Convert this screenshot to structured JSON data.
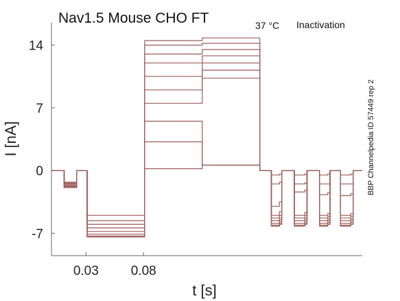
{
  "chart_data": {
    "type": "line",
    "title_main": "Nav1.5  Mouse  CHO FT",
    "title_sub_temp": "37 °C",
    "title_sub_protocol": "Inactivation",
    "side_label": "BBP Channelpedia ID 57449 rep 2",
    "xlabel": "t [s]",
    "ylabel": "I [nA]",
    "x_ticks": [
      {
        "value": 0.03,
        "label": "0.03"
      },
      {
        "value": 0.08,
        "label": "0.08"
      }
    ],
    "y_ticks": [
      {
        "value": 14,
        "label": "14"
      },
      {
        "value": 7,
        "label": "7"
      },
      {
        "value": 0,
        "label": "0"
      },
      {
        "value": -7,
        "label": "-7"
      }
    ],
    "xlim": [
      0.0,
      0.27
    ],
    "ylim": [
      -9.5,
      16.5
    ],
    "trace_color": "#9c5c5c",
    "legend": "none",
    "grid": false,
    "series": [
      {
        "values": [
          [
            0,
            0
          ],
          [
            0.01,
            0
          ],
          [
            0.011,
            -1.3
          ],
          [
            0.021,
            -1.3
          ],
          [
            0.022,
            0
          ],
          [
            0.03,
            0
          ],
          [
            0.031,
            -5.0
          ],
          [
            0.08,
            -5.0
          ],
          [
            0.081,
            14.5
          ],
          [
            0.13,
            14.5
          ],
          [
            0.131,
            14.8
          ],
          [
            0.18,
            14.8
          ],
          [
            0.181,
            0
          ],
          [
            0.19,
            0
          ],
          [
            0.191,
            -5.0
          ],
          [
            0.198,
            -4.6
          ],
          [
            0.2,
            0
          ],
          [
            0.21,
            0
          ],
          [
            0.211,
            -5.0
          ],
          [
            0.22,
            -4.7
          ],
          [
            0.222,
            0
          ],
          [
            0.232,
            0
          ],
          [
            0.233,
            -5.0
          ],
          [
            0.24,
            -4.8
          ],
          [
            0.242,
            0
          ],
          [
            0.25,
            0
          ],
          [
            0.251,
            -5.0
          ],
          [
            0.26,
            -4.8
          ],
          [
            0.262,
            0
          ],
          [
            0.27,
            0
          ]
        ]
      },
      {
        "values": [
          [
            0,
            0
          ],
          [
            0.01,
            0
          ],
          [
            0.011,
            -1.4
          ],
          [
            0.021,
            -1.4
          ],
          [
            0.022,
            0
          ],
          [
            0.03,
            0
          ],
          [
            0.031,
            -5.6
          ],
          [
            0.08,
            -5.6
          ],
          [
            0.081,
            14.0
          ],
          [
            0.13,
            14.0
          ],
          [
            0.131,
            14.2
          ],
          [
            0.18,
            14.2
          ],
          [
            0.181,
            0
          ],
          [
            0.19,
            0
          ],
          [
            0.191,
            -5.3
          ],
          [
            0.198,
            -5.0
          ],
          [
            0.2,
            0
          ],
          [
            0.21,
            0
          ],
          [
            0.211,
            -5.3
          ],
          [
            0.22,
            -5.0
          ],
          [
            0.222,
            0
          ],
          [
            0.232,
            0
          ],
          [
            0.233,
            -5.3
          ],
          [
            0.24,
            -5.1
          ],
          [
            0.242,
            0
          ],
          [
            0.25,
            0
          ],
          [
            0.251,
            -5.3
          ],
          [
            0.26,
            -5.1
          ],
          [
            0.262,
            0
          ],
          [
            0.27,
            0
          ]
        ]
      },
      {
        "values": [
          [
            0,
            0
          ],
          [
            0.01,
            0
          ],
          [
            0.011,
            -1.5
          ],
          [
            0.021,
            -1.5
          ],
          [
            0.022,
            0
          ],
          [
            0.03,
            0
          ],
          [
            0.031,
            -6.0
          ],
          [
            0.08,
            -6.0
          ],
          [
            0.081,
            13.0
          ],
          [
            0.13,
            13.0
          ],
          [
            0.131,
            13.5
          ],
          [
            0.18,
            13.5
          ],
          [
            0.181,
            0
          ],
          [
            0.19,
            0
          ],
          [
            0.191,
            -5.6
          ],
          [
            0.198,
            -5.3
          ],
          [
            0.2,
            0
          ],
          [
            0.21,
            0
          ],
          [
            0.211,
            -5.6
          ],
          [
            0.22,
            -5.3
          ],
          [
            0.222,
            0
          ],
          [
            0.232,
            0
          ],
          [
            0.233,
            -5.6
          ],
          [
            0.24,
            -5.4
          ],
          [
            0.242,
            0
          ],
          [
            0.25,
            0
          ],
          [
            0.251,
            -5.6
          ],
          [
            0.26,
            -5.4
          ],
          [
            0.262,
            0
          ],
          [
            0.27,
            0
          ]
        ]
      },
      {
        "values": [
          [
            0,
            0
          ],
          [
            0.01,
            0
          ],
          [
            0.011,
            -1.6
          ],
          [
            0.021,
            -1.6
          ],
          [
            0.022,
            0
          ],
          [
            0.03,
            0
          ],
          [
            0.031,
            -6.4
          ],
          [
            0.08,
            -6.4
          ],
          [
            0.081,
            12.0
          ],
          [
            0.13,
            12.0
          ],
          [
            0.131,
            12.8
          ],
          [
            0.18,
            12.8
          ],
          [
            0.181,
            0
          ],
          [
            0.19,
            0
          ],
          [
            0.191,
            -5.9
          ],
          [
            0.198,
            -5.5
          ],
          [
            0.2,
            0
          ],
          [
            0.21,
            0
          ],
          [
            0.211,
            -5.9
          ],
          [
            0.22,
            -5.5
          ],
          [
            0.222,
            0
          ],
          [
            0.232,
            0
          ],
          [
            0.233,
            -5.9
          ],
          [
            0.24,
            -5.6
          ],
          [
            0.242,
            0
          ],
          [
            0.25,
            0
          ],
          [
            0.251,
            -5.9
          ],
          [
            0.26,
            -5.6
          ],
          [
            0.262,
            0
          ],
          [
            0.27,
            0
          ]
        ]
      },
      {
        "values": [
          [
            0,
            0
          ],
          [
            0.01,
            0
          ],
          [
            0.011,
            -1.7
          ],
          [
            0.021,
            -1.7
          ],
          [
            0.022,
            0
          ],
          [
            0.03,
            0
          ],
          [
            0.031,
            -6.8
          ],
          [
            0.08,
            -6.8
          ],
          [
            0.081,
            10.5
          ],
          [
            0.13,
            10.5
          ],
          [
            0.131,
            12.0
          ],
          [
            0.18,
            12.0
          ],
          [
            0.181,
            0
          ],
          [
            0.19,
            0
          ],
          [
            0.191,
            -6.1
          ],
          [
            0.198,
            -5.7
          ],
          [
            0.2,
            0
          ],
          [
            0.21,
            0
          ],
          [
            0.211,
            -6.1
          ],
          [
            0.22,
            -5.7
          ],
          [
            0.222,
            0
          ],
          [
            0.232,
            0
          ],
          [
            0.233,
            -6.1
          ],
          [
            0.24,
            -5.8
          ],
          [
            0.242,
            0
          ],
          [
            0.25,
            0
          ],
          [
            0.251,
            -6.1
          ],
          [
            0.26,
            -5.8
          ],
          [
            0.262,
            0
          ],
          [
            0.27,
            0
          ]
        ]
      },
      {
        "values": [
          [
            0,
            0
          ],
          [
            0.01,
            0
          ],
          [
            0.011,
            -1.8
          ],
          [
            0.021,
            -1.8
          ],
          [
            0.022,
            0
          ],
          [
            0.03,
            0
          ],
          [
            0.031,
            -7.1
          ],
          [
            0.08,
            -7.1
          ],
          [
            0.081,
            9.0
          ],
          [
            0.13,
            9.0
          ],
          [
            0.131,
            11.2
          ],
          [
            0.18,
            11.2
          ],
          [
            0.181,
            0
          ],
          [
            0.19,
            0
          ],
          [
            0.191,
            -6.2
          ],
          [
            0.198,
            -5.9
          ],
          [
            0.2,
            0
          ],
          [
            0.21,
            0
          ],
          [
            0.211,
            -6.2
          ],
          [
            0.22,
            -5.9
          ],
          [
            0.222,
            0
          ],
          [
            0.232,
            0
          ],
          [
            0.233,
            -6.2
          ],
          [
            0.24,
            -6.0
          ],
          [
            0.242,
            0
          ],
          [
            0.25,
            0
          ],
          [
            0.251,
            -6.2
          ],
          [
            0.26,
            -6.0
          ],
          [
            0.262,
            0
          ],
          [
            0.27,
            0
          ]
        ]
      },
      {
        "values": [
          [
            0,
            0
          ],
          [
            0.01,
            0
          ],
          [
            0.011,
            -1.9
          ],
          [
            0.021,
            -1.9
          ],
          [
            0.022,
            0
          ],
          [
            0.03,
            0
          ],
          [
            0.031,
            -7.3
          ],
          [
            0.08,
            -7.3
          ],
          [
            0.081,
            7.5
          ],
          [
            0.13,
            7.5
          ],
          [
            0.131,
            10.3
          ],
          [
            0.18,
            10.3
          ],
          [
            0.181,
            0
          ],
          [
            0.19,
            0
          ],
          [
            0.191,
            -6.2
          ],
          [
            0.198,
            -6.0
          ],
          [
            0.2,
            0
          ],
          [
            0.21,
            0
          ],
          [
            0.211,
            -6.2
          ],
          [
            0.22,
            -6.0
          ],
          [
            0.222,
            0
          ],
          [
            0.232,
            0
          ],
          [
            0.233,
            -6.2
          ],
          [
            0.24,
            -6.0
          ],
          [
            0.242,
            0
          ],
          [
            0.25,
            0
          ],
          [
            0.251,
            -6.2
          ],
          [
            0.26,
            -6.0
          ],
          [
            0.262,
            0
          ],
          [
            0.27,
            0
          ]
        ]
      },
      {
        "values": [
          [
            0,
            0
          ],
          [
            0.01,
            0
          ],
          [
            0.011,
            -1.9
          ],
          [
            0.021,
            -1.9
          ],
          [
            0.022,
            0
          ],
          [
            0.03,
            0
          ],
          [
            0.031,
            -7.4
          ],
          [
            0.08,
            -7.4
          ],
          [
            0.081,
            5.5
          ],
          [
            0.13,
            5.5
          ],
          [
            0.131,
            0.6
          ],
          [
            0.18,
            0.6
          ],
          [
            0.181,
            0
          ],
          [
            0.19,
            0
          ],
          [
            0.191,
            -4.0
          ],
          [
            0.198,
            -3.5
          ],
          [
            0.2,
            0
          ],
          [
            0.21,
            0
          ],
          [
            0.211,
            -2.4
          ],
          [
            0.22,
            -2.2
          ],
          [
            0.222,
            0
          ],
          [
            0.232,
            0
          ],
          [
            0.233,
            -2.7
          ],
          [
            0.24,
            -2.5
          ],
          [
            0.242,
            0
          ],
          [
            0.25,
            0
          ],
          [
            0.251,
            -2.8
          ],
          [
            0.26,
            -2.6
          ],
          [
            0.262,
            0
          ],
          [
            0.27,
            0
          ]
        ]
      },
      {
        "values": [
          [
            0,
            0
          ],
          [
            0.01,
            0
          ],
          [
            0.011,
            -1.9
          ],
          [
            0.021,
            -1.9
          ],
          [
            0.022,
            0
          ],
          [
            0.03,
            0
          ],
          [
            0.031,
            -7.4
          ],
          [
            0.08,
            -7.4
          ],
          [
            0.081,
            3.2
          ],
          [
            0.13,
            3.2
          ],
          [
            0.131,
            0.6
          ],
          [
            0.18,
            0.6
          ],
          [
            0.181,
            0
          ],
          [
            0.19,
            0
          ],
          [
            0.191,
            -1.5
          ],
          [
            0.198,
            -1.3
          ],
          [
            0.2,
            0
          ],
          [
            0.21,
            0
          ],
          [
            0.211,
            -1.5
          ],
          [
            0.22,
            -1.4
          ],
          [
            0.222,
            0
          ],
          [
            0.232,
            0
          ],
          [
            0.233,
            -1.5
          ],
          [
            0.24,
            -1.5
          ],
          [
            0.242,
            0
          ],
          [
            0.25,
            0
          ],
          [
            0.251,
            -1.5
          ],
          [
            0.26,
            -1.5
          ],
          [
            0.262,
            0
          ],
          [
            0.27,
            0
          ]
        ]
      },
      {
        "values": [
          [
            0,
            0
          ],
          [
            0.01,
            0
          ],
          [
            0.011,
            -1.9
          ],
          [
            0.021,
            -1.9
          ],
          [
            0.022,
            0
          ],
          [
            0.03,
            0
          ],
          [
            0.031,
            -7.4
          ],
          [
            0.08,
            -7.4
          ],
          [
            0.081,
            0.2
          ],
          [
            0.13,
            0.2
          ],
          [
            0.131,
            0.6
          ],
          [
            0.18,
            0.6
          ],
          [
            0.181,
            0
          ],
          [
            0.19,
            0
          ],
          [
            0.191,
            -0.5
          ],
          [
            0.198,
            -0.4
          ],
          [
            0.2,
            0
          ],
          [
            0.21,
            0
          ],
          [
            0.211,
            -0.5
          ],
          [
            0.22,
            -0.4
          ],
          [
            0.222,
            0
          ],
          [
            0.232,
            0
          ],
          [
            0.233,
            -0.5
          ],
          [
            0.24,
            -0.4
          ],
          [
            0.242,
            0
          ],
          [
            0.25,
            0
          ],
          [
            0.251,
            -0.5
          ],
          [
            0.26,
            -0.4
          ],
          [
            0.262,
            0
          ],
          [
            0.27,
            0
          ]
        ]
      }
    ]
  }
}
